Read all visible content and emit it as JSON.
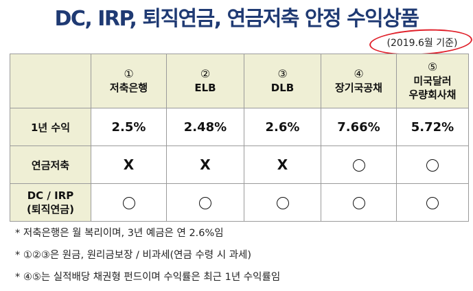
{
  "title": "DC, IRP, 퇴직연금, 연금저축 안정 수익상품",
  "date_note": "(2019.6월 기준)",
  "columns": [
    {
      "num": "①",
      "name": "저축은행"
    },
    {
      "num": "②",
      "name": "ELB"
    },
    {
      "num": "③",
      "name": "DLB"
    },
    {
      "num": "④",
      "name": "장기국공채"
    },
    {
      "num": "⑤",
      "name": "미국달러 우량회사채"
    }
  ],
  "rows": {
    "return": {
      "label": "1년 수익",
      "values": [
        "2.5%",
        "2.48%",
        "2.6%",
        "7.66%",
        "5.72%"
      ]
    },
    "pension": {
      "label": "연금저축",
      "values": [
        "X",
        "X",
        "X",
        "○",
        "○"
      ]
    },
    "dcirp": {
      "label": "DC / IRP (퇴직연금)",
      "label_line1": "DC / IRP",
      "label_line2": "(퇴직연금)",
      "values": [
        "○",
        "○",
        "○",
        "○",
        "○"
      ]
    }
  },
  "notes": [
    "* 저축은행은 월 복리이며, 3년 예금은 연 2.6%임",
    "* ①②③은 원금, 원리금보장 / 비과세(연금 수령 시 과세)",
    "* ④⑤는 실적배당 채권형 펀드이며 수익률은 최근 1년 수익률임"
  ],
  "colors": {
    "title": "#1f3a73",
    "header_bg": "#efefd5",
    "annotation": "#e0202a"
  }
}
